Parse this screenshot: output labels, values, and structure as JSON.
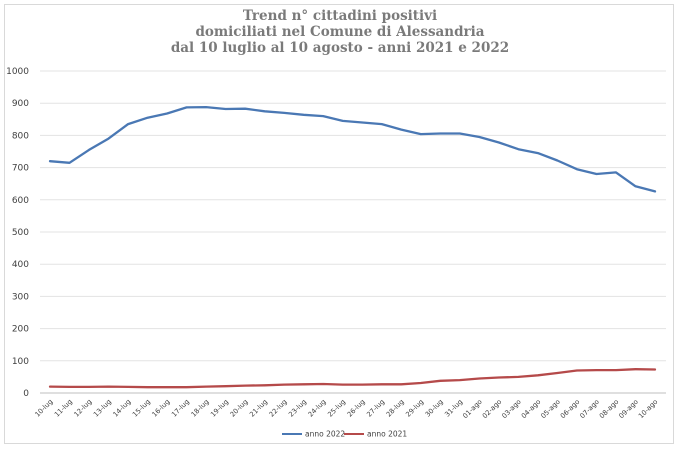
{
  "chart_data": {
    "type": "line",
    "title_lines": [
      "Trend n° cittadini positivi",
      "domiciliati nel Comune di Alessandria",
      "dal 10 luglio al 10 agosto - anni 2021 e 2022"
    ],
    "xlabel": "",
    "ylabel": "",
    "ylim": [
      0,
      1000
    ],
    "yticks": [
      0,
      100,
      200,
      300,
      400,
      500,
      600,
      700,
      800,
      900,
      1000
    ],
    "grid": true,
    "legend_position": "bottom",
    "categories": [
      "10-lug",
      "11-lug",
      "12-lug",
      "13-lug",
      "14-lug",
      "15-lug",
      "16-lug",
      "17-lug",
      "18-lug",
      "19-lug",
      "20-lug",
      "21-lug",
      "22-lug",
      "23-lug",
      "24-lug",
      "25-lug",
      "26-lug",
      "27-lug",
      "28-lug",
      "29-lug",
      "30-lug",
      "31-lug",
      "01-ago",
      "02-ago",
      "03-ago",
      "04-ago",
      "05-ago",
      "06-ago",
      "07-ago",
      "08-ago",
      "09-ago",
      "10-ago"
    ],
    "series": [
      {
        "name": "anno 2022",
        "color": "#4a78b4",
        "values": [
          720,
          715,
          755,
          790,
          835,
          855,
          868,
          887,
          888,
          882,
          883,
          875,
          870,
          864,
          860,
          845,
          840,
          835,
          818,
          804,
          806,
          806,
          795,
          778,
          757,
          745,
          722,
          695,
          680,
          685,
          642,
          626
        ]
      },
      {
        "name": "anno 2021",
        "color": "#b54a4a",
        "values": [
          20,
          19,
          19,
          20,
          19,
          18,
          18,
          18,
          20,
          21,
          23,
          24,
          26,
          27,
          28,
          26,
          26,
          27,
          27,
          31,
          38,
          40,
          45,
          48,
          50,
          55,
          62,
          70,
          71,
          71,
          74,
          73
        ]
      }
    ]
  }
}
